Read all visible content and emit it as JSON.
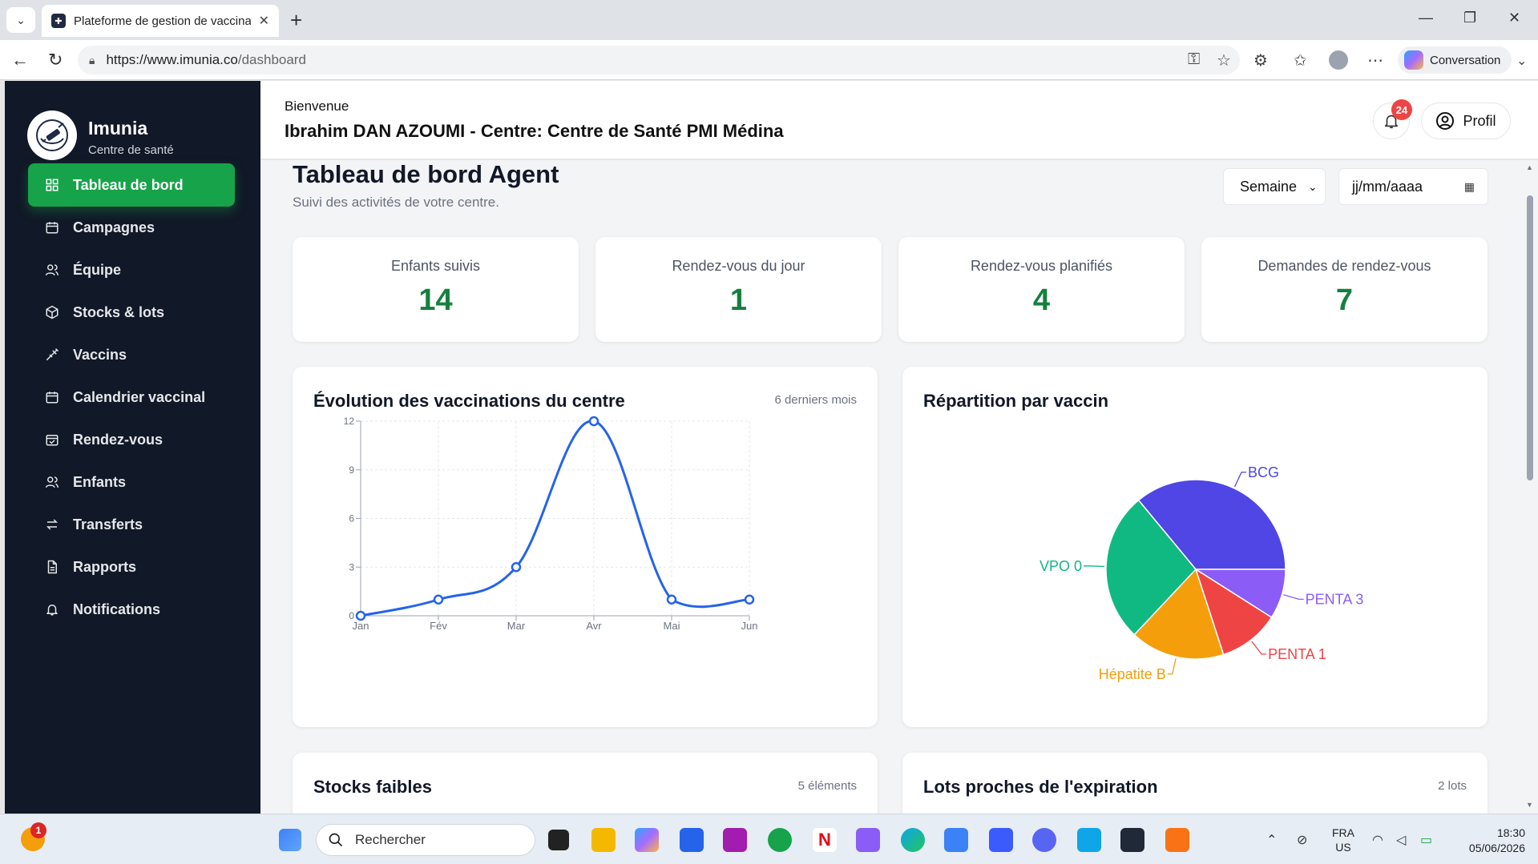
{
  "browser": {
    "tab_title": "Plateforme de gestion de vaccinati",
    "url_host": "https://www.imunia.co",
    "url_path": "/dashboard",
    "copilot_label": "Conversation"
  },
  "app": {
    "name": "Imunia",
    "subtitle": "Centre de santé"
  },
  "sidebar": {
    "items": [
      {
        "label": "Tableau de bord",
        "icon": "dashboard-grid-icon",
        "active": true
      },
      {
        "label": "Campagnes",
        "icon": "calendar-icon"
      },
      {
        "label": "Équipe",
        "icon": "users-icon"
      },
      {
        "label": "Stocks & lots",
        "icon": "box-icon"
      },
      {
        "label": "Vaccins",
        "icon": "syringe-icon"
      },
      {
        "label": "Calendrier vaccinal",
        "icon": "calendar-icon"
      },
      {
        "label": "Rendez-vous",
        "icon": "calendar-check-icon"
      },
      {
        "label": "Enfants",
        "icon": "users-icon"
      },
      {
        "label": "Transferts",
        "icon": "arrows-exchange-icon"
      },
      {
        "label": "Rapports",
        "icon": "file-icon"
      },
      {
        "label": "Notifications",
        "icon": "bell-icon"
      }
    ]
  },
  "header": {
    "welcome": "Bienvenue",
    "user_line": "Ibrahim DAN AZOUMI - Centre: Centre de Santé PMI Médina",
    "notif_count": "24",
    "profile_label": "Profil"
  },
  "dashboard": {
    "title": "Tableau de bord Agent",
    "subtitle": "Suivi des activités de votre centre.",
    "period_value": "Semaine",
    "date_placeholder": "jj/mm/aaaa",
    "stats": [
      {
        "label": "Enfants suivis",
        "value": "14"
      },
      {
        "label": "Rendez-vous du jour",
        "value": "1"
      },
      {
        "label": "Rendez-vous planifiés",
        "value": "4"
      },
      {
        "label": "Demandes de rendez-vous",
        "value": "7"
      }
    ],
    "line_card": {
      "title": "Évolution des vaccinations du centre",
      "meta": "6 derniers mois"
    },
    "pie_card": {
      "title": "Répartition par vaccin"
    },
    "stock_card": {
      "title": "Stocks faibles",
      "meta": "5 éléments"
    },
    "lots_card": {
      "title": "Lots proches de l'expiration",
      "meta": "2 lots"
    }
  },
  "chart_data": [
    {
      "type": "line",
      "title": "Évolution des vaccinations du centre",
      "categories": [
        "Jan",
        "Fév",
        "Mar",
        "Avr",
        "Mai",
        "Jun"
      ],
      "values": [
        0,
        1,
        3,
        12,
        1,
        1
      ],
      "yticks": [
        "0",
        "3",
        "6",
        "9",
        "12"
      ],
      "ylim": [
        0,
        12
      ],
      "grid": true,
      "color": "#2563eb"
    },
    {
      "type": "pie",
      "title": "Répartition par vaccin",
      "slices": [
        {
          "label": "BCG",
          "value": 36,
          "color": "#4f46e5"
        },
        {
          "label": "PENTA 3",
          "value": 9,
          "color": "#8b5cf6"
        },
        {
          "label": "PENTA 1",
          "value": 11,
          "color": "#ef4444"
        },
        {
          "label": "Hépatite B",
          "value": 17,
          "color": "#f59e0b"
        },
        {
          "label": "VPO 0",
          "value": 27,
          "color": "#10b981"
        }
      ]
    }
  ],
  "taskbar": {
    "search_placeholder": "Rechercher",
    "lang_top": "FRA",
    "lang_bottom": "US",
    "time": "18:30",
    "date": "05/06/2026",
    "notif_badge": "1"
  }
}
